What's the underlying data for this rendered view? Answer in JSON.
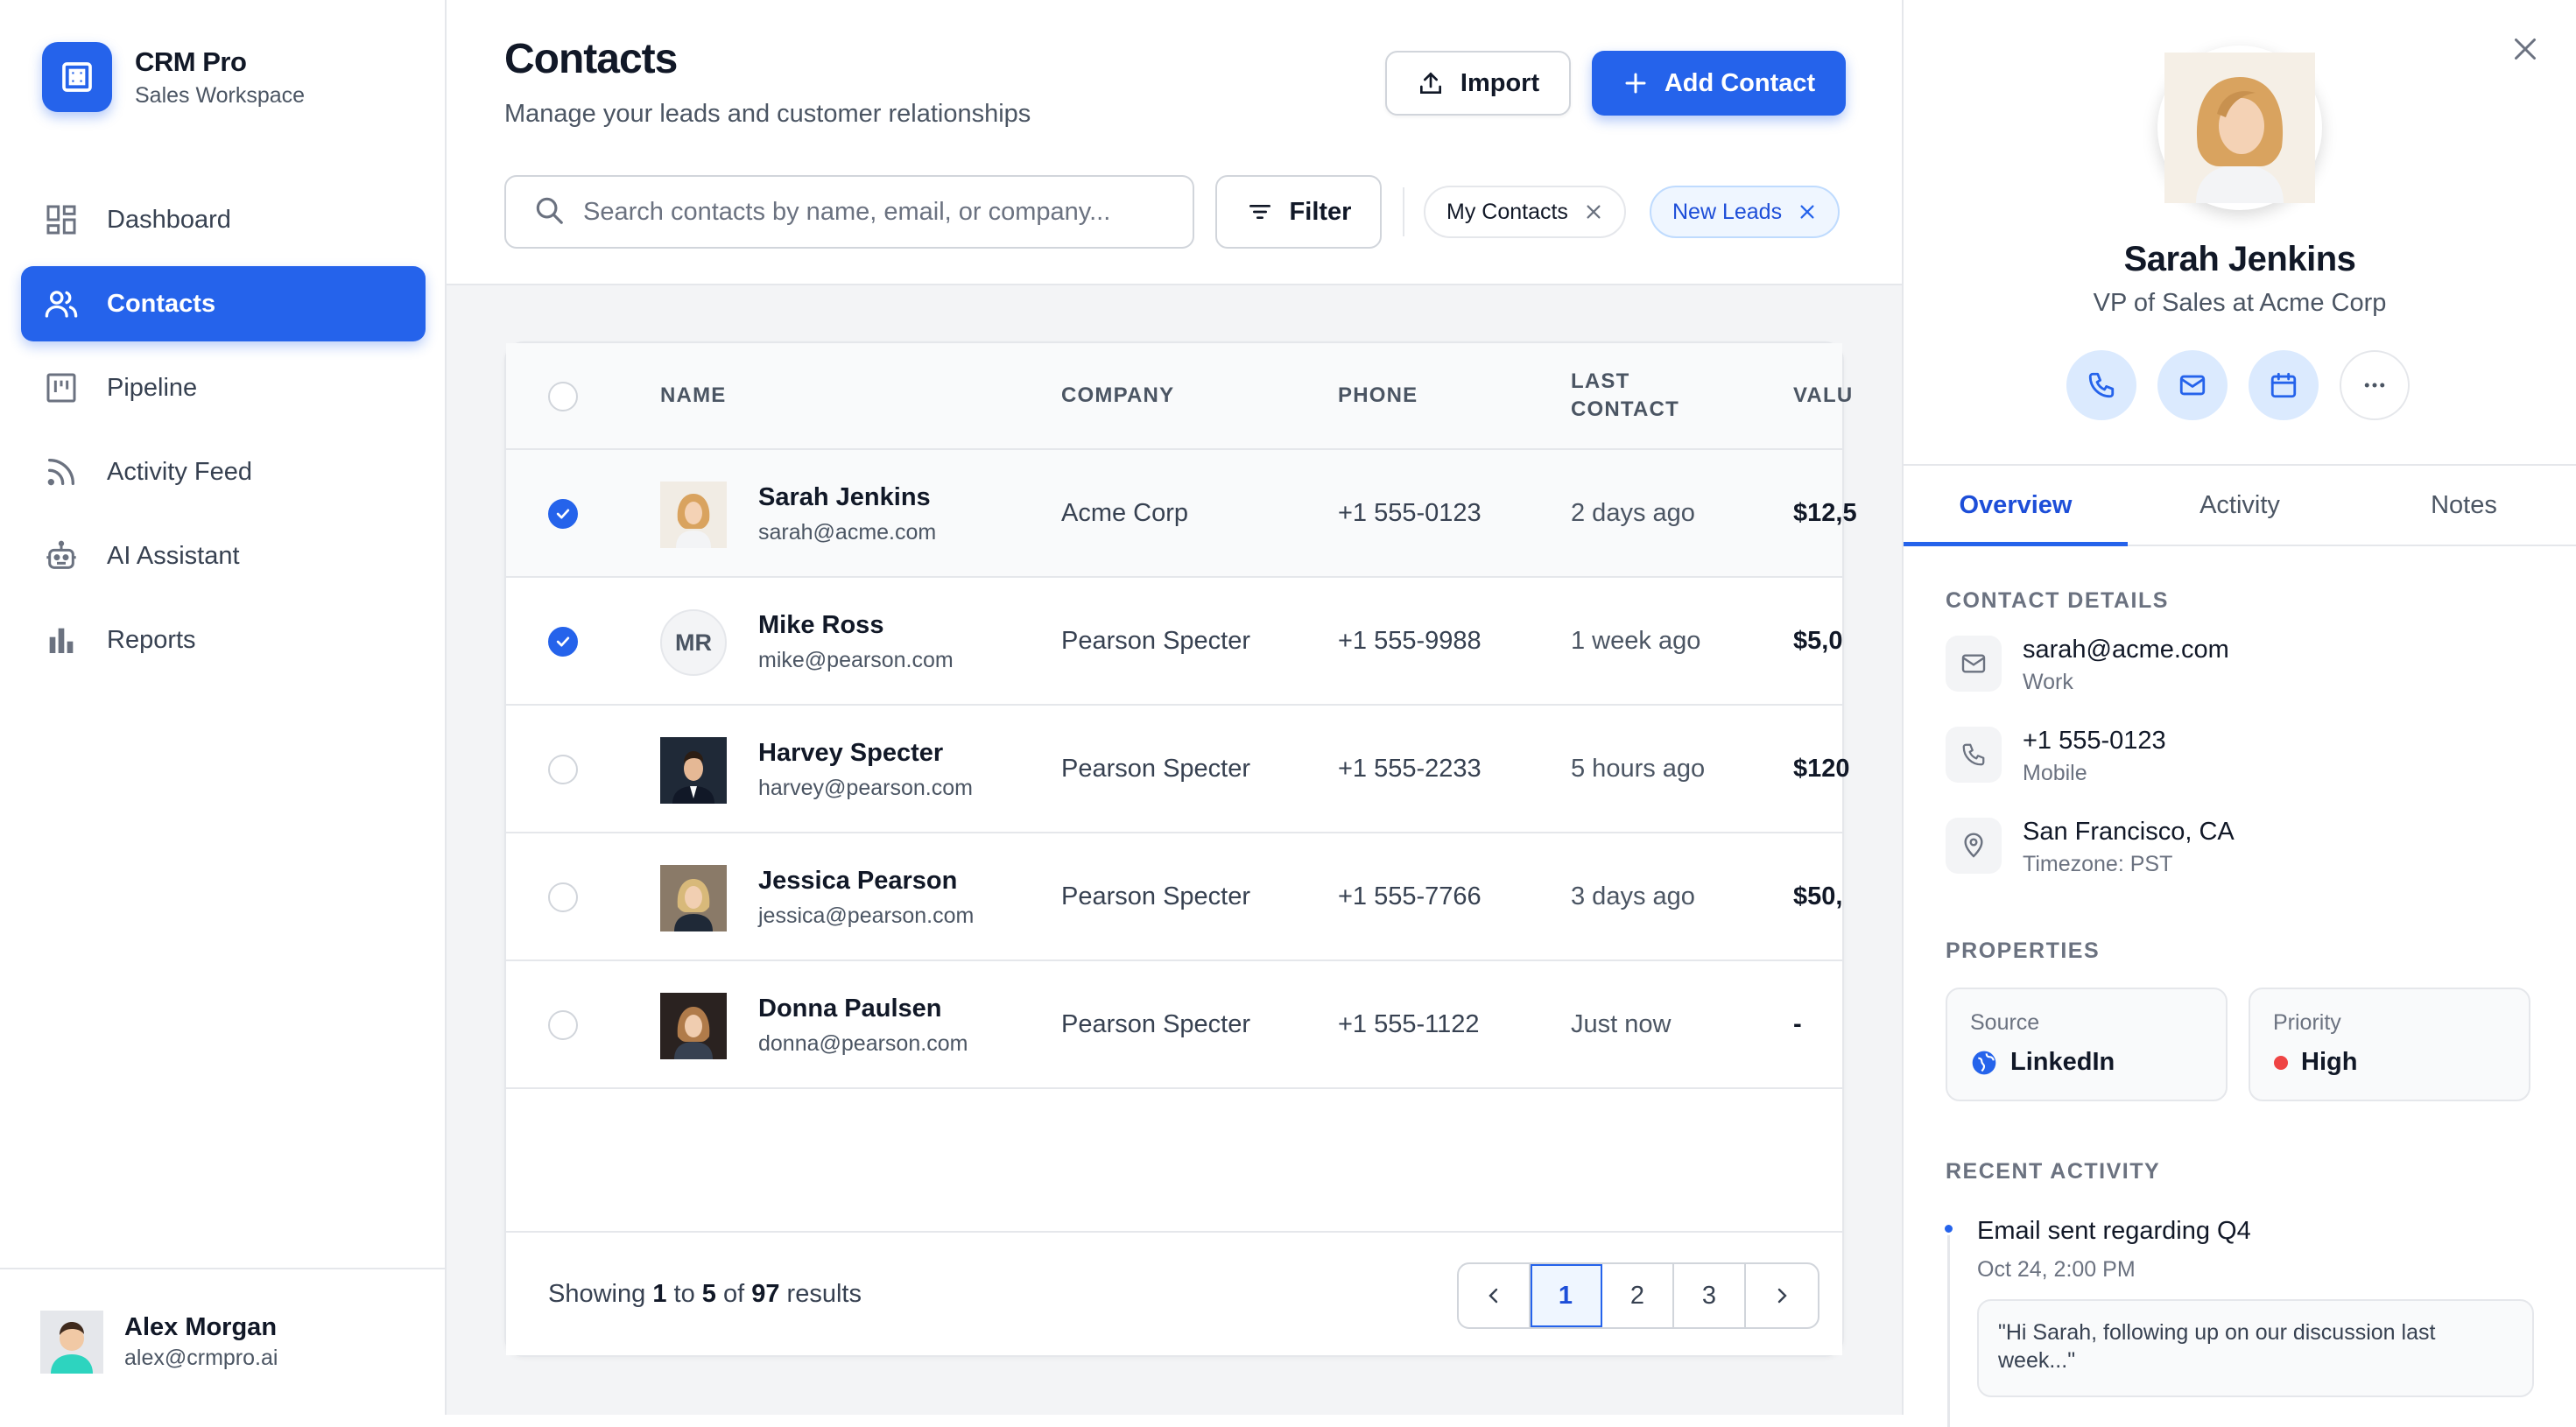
{
  "sidebar": {
    "brand_title": "CRM Pro",
    "brand_subtitle": "Sales Workspace",
    "items": [
      {
        "label": "Dashboard",
        "icon": "dashboard-icon"
      },
      {
        "label": "Contacts",
        "icon": "users-icon",
        "active": true
      },
      {
        "label": "Pipeline",
        "icon": "kanban-icon"
      },
      {
        "label": "Activity Feed",
        "icon": "rss-icon"
      },
      {
        "label": "AI Assistant",
        "icon": "robot-icon"
      },
      {
        "label": "Reports",
        "icon": "bar-chart-icon"
      }
    ],
    "user": {
      "name": "Alex Morgan",
      "email": "alex@crmpro.ai"
    }
  },
  "header": {
    "title": "Contacts",
    "subtitle": "Manage your leads and customer relationships",
    "import_label": "Import",
    "add_label": "Add Contact",
    "search_placeholder": "Search contacts by name, email, or company...",
    "filter_label": "Filter",
    "chips": [
      "My Contacts",
      "New Leads"
    ]
  },
  "table": {
    "columns": [
      "Name",
      "Company",
      "Phone",
      "Last Contact",
      "Valu"
    ],
    "rows": [
      {
        "name": "Sarah Jenkins",
        "email": "sarah@acme.com",
        "company": "Acme Corp",
        "phone": "+1 555-0123",
        "last": "2 days ago",
        "value": "$12,5",
        "checked": true,
        "avatar": "photo"
      },
      {
        "name": "Mike Ross",
        "email": "mike@pearson.com",
        "company": "Pearson Specter",
        "phone": "+1 555-9988",
        "last": "1 week ago",
        "value": "$5,0",
        "checked": true,
        "avatar": "initials",
        "initials": "MR"
      },
      {
        "name": "Harvey Specter",
        "email": "harvey@pearson.com",
        "company": "Pearson Specter",
        "phone": "+1 555-2233",
        "last": "5 hours ago",
        "value": "$120",
        "checked": false,
        "avatar": "photo"
      },
      {
        "name": "Jessica Pearson",
        "email": "jessica@pearson.com",
        "company": "Pearson Specter",
        "phone": "+1 555-7766",
        "last": "3 days ago",
        "value": "$50,",
        "checked": false,
        "avatar": "photo"
      },
      {
        "name": "Donna Paulsen",
        "email": "donna@pearson.com",
        "company": "Pearson Specter",
        "phone": "+1 555-1122",
        "last": "Just now",
        "value": "-",
        "checked": false,
        "avatar": "photo"
      }
    ],
    "footer": {
      "prefix": "Showing",
      "from": "1",
      "to_word": "to",
      "to": "5",
      "of_word": "of",
      "total": "97",
      "suffix": "results"
    },
    "pages": [
      "1",
      "2",
      "3"
    ],
    "current_page": "1"
  },
  "panel": {
    "name": "Sarah Jenkins",
    "title": "VP of Sales at Acme Corp",
    "tabs": [
      "Overview",
      "Activity",
      "Notes"
    ],
    "contact_details_heading": "CONTACT DETAILS",
    "details": [
      {
        "icon": "mail-icon",
        "value": "sarah@acme.com",
        "sub": "Work"
      },
      {
        "icon": "phone-icon",
        "value": "+1 555-0123",
        "sub": "Mobile"
      },
      {
        "icon": "location-pin-icon",
        "value": "San Francisco, CA",
        "sub": "Timezone: PST"
      }
    ],
    "properties_heading": "PROPERTIES",
    "properties": [
      {
        "label": "Source",
        "value": "LinkedIn",
        "icon": "globe-icon"
      },
      {
        "label": "Priority",
        "value": "High",
        "icon": "red-dot-icon"
      }
    ],
    "recent_activity_heading": "RECENT ACTIVITY",
    "activity": {
      "title": "Email sent regarding Q4",
      "time": "Oct 24, 2:00 PM",
      "quote": "\"Hi Sarah, following up on our discussion last week...\""
    }
  },
  "colors": {
    "accent": "#2563eb",
    "priority_high": "#ef4444"
  }
}
